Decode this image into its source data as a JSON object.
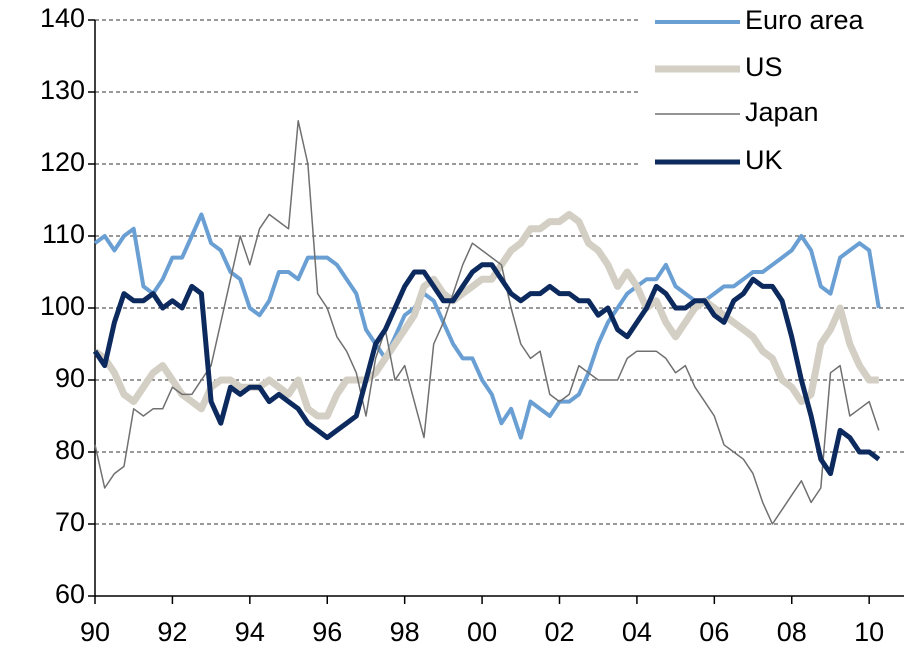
{
  "chart_data": {
    "type": "line",
    "x": [
      1990,
      1990.25,
      1990.5,
      1990.75,
      1991,
      1991.25,
      1991.5,
      1991.75,
      1992,
      1992.25,
      1992.5,
      1992.75,
      1993,
      1993.25,
      1993.5,
      1993.75,
      1994,
      1994.25,
      1994.5,
      1994.75,
      1995,
      1995.25,
      1995.5,
      1995.75,
      1996,
      1996.25,
      1996.5,
      1996.75,
      1997,
      1997.25,
      1997.5,
      1997.75,
      1998,
      1998.25,
      1998.5,
      1998.75,
      1999,
      1999.25,
      1999.5,
      1999.75,
      2000,
      2000.25,
      2000.5,
      2000.75,
      2001,
      2001.25,
      2001.5,
      2001.75,
      2002,
      2002.25,
      2002.5,
      2002.75,
      2003,
      2003.25,
      2003.5,
      2003.75,
      2004,
      2004.25,
      2004.5,
      2004.75,
      2005,
      2005.25,
      2005.5,
      2005.75,
      2006,
      2006.25,
      2006.5,
      2006.75,
      2007,
      2007.25,
      2007.5,
      2007.75,
      2008,
      2008.25,
      2008.5,
      2008.75,
      2009,
      2009.25,
      2009.5,
      2009.75,
      2010,
      2010.25
    ],
    "series": [
      {
        "name": "Euro area",
        "color": "#6a9fd4",
        "values": [
          109,
          110,
          108,
          110,
          111,
          103,
          102,
          104,
          107,
          107,
          110,
          113,
          109,
          108,
          105,
          104,
          100,
          99,
          101,
          105,
          105,
          104,
          107,
          107,
          107,
          106,
          104,
          102,
          97,
          95,
          93,
          96,
          99,
          100,
          102,
          101,
          98,
          95,
          93,
          93,
          90,
          88,
          84,
          86,
          82,
          87,
          86,
          85,
          87,
          87,
          88,
          91,
          95,
          98,
          100,
          102,
          103,
          104,
          104,
          106,
          103,
          102,
          101,
          101,
          102,
          103,
          103,
          104,
          105,
          105,
          106,
          107,
          108,
          110,
          108,
          103,
          102,
          107,
          108,
          109,
          108,
          100
        ]
      },
      {
        "name": "US",
        "color": "#d4cfc4",
        "values": [
          94,
          93,
          91,
          88,
          87,
          89,
          91,
          92,
          90,
          88,
          87,
          86,
          89,
          90,
          90,
          89,
          89,
          89,
          90,
          89,
          88,
          90,
          86,
          85,
          85,
          88,
          90,
          90,
          90,
          91,
          93,
          95,
          97,
          99,
          103,
          104,
          102,
          101,
          102,
          103,
          104,
          104,
          106,
          108,
          109,
          111,
          111,
          112,
          112,
          113,
          112,
          109,
          108,
          106,
          103,
          105,
          103,
          100,
          101,
          98,
          96,
          98,
          100,
          101,
          100,
          99,
          98,
          97,
          96,
          94,
          93,
          90,
          89,
          87,
          88,
          95,
          97,
          100,
          95,
          92,
          90,
          90
        ]
      },
      {
        "name": "Japan",
        "color": "#707070",
        "values": [
          81,
          75,
          77,
          78,
          86,
          85,
          86,
          86,
          89,
          88,
          88,
          90,
          92,
          98,
          104,
          110,
          106,
          111,
          113,
          112,
          111,
          126,
          120,
          102,
          100,
          96,
          94,
          91,
          85,
          93,
          97,
          90,
          92,
          87,
          82,
          95,
          98,
          102,
          106,
          109,
          108,
          107,
          106,
          100,
          95,
          93,
          94,
          88,
          87,
          88,
          92,
          91,
          90,
          90,
          90,
          93,
          94,
          94,
          94,
          93,
          91,
          92,
          89,
          87,
          85,
          81,
          80,
          79,
          77,
          73,
          70,
          72,
          74,
          76,
          73,
          75,
          91,
          92,
          85,
          86,
          87,
          83
        ]
      },
      {
        "name": "UK",
        "color": "#0d2a5e",
        "values": [
          94,
          92,
          98,
          102,
          101,
          101,
          102,
          100,
          101,
          100,
          103,
          102,
          87,
          84,
          89,
          88,
          89,
          89,
          87,
          88,
          87,
          86,
          84,
          83,
          82,
          83,
          84,
          85,
          90,
          95,
          97,
          100,
          103,
          105,
          105,
          103,
          101,
          101,
          103,
          105,
          106,
          106,
          104,
          102,
          101,
          102,
          102,
          103,
          102,
          102,
          101,
          101,
          99,
          100,
          97,
          96,
          98,
          100,
          103,
          102,
          100,
          100,
          101,
          101,
          99,
          98,
          101,
          102,
          104,
          103,
          103,
          101,
          96,
          90,
          85,
          79,
          77,
          83,
          82,
          80,
          80,
          79
        ]
      }
    ],
    "xlim": [
      1990,
      2010.9
    ],
    "xticks": [
      {
        "value": 1990,
        "label": "90"
      },
      {
        "value": 1992,
        "label": "92"
      },
      {
        "value": 1994,
        "label": "94"
      },
      {
        "value": 1996,
        "label": "96"
      },
      {
        "value": 1998,
        "label": "98"
      },
      {
        "value": 2000,
        "label": "00"
      },
      {
        "value": 2002,
        "label": "02"
      },
      {
        "value": 2004,
        "label": "04"
      },
      {
        "value": 2006,
        "label": "06"
      },
      {
        "value": 2008,
        "label": "08"
      },
      {
        "value": 2010,
        "label": "10"
      }
    ],
    "ylim": [
      60,
      140
    ],
    "yticks": [
      60,
      70,
      80,
      90,
      100,
      110,
      120,
      130,
      140
    ],
    "grid": true,
    "legend": "upper right"
  }
}
